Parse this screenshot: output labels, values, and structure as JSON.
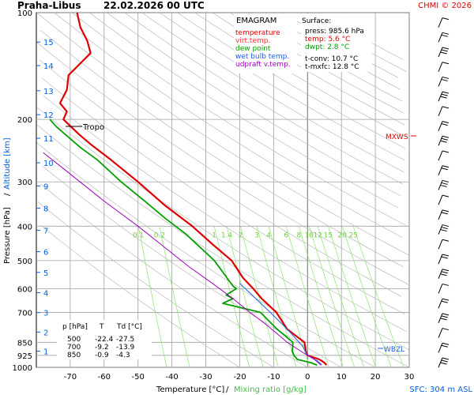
{
  "header": {
    "station": "Praha-Libus",
    "datetime": "22.02.2026 00 UTC",
    "credit": "CHMI © 2026"
  },
  "colors": {
    "temperature": "#e00000",
    "virt_temp": "#ff0000",
    "dew_point": "#00a000",
    "wet_bulb": "#2060e0",
    "updraft": "#a000c0",
    "grid": "#a0a0a0",
    "mixing": "#90e070",
    "adiabat": "#b0b0b0",
    "altitude": "#0060e0",
    "wind": "#000000"
  },
  "legend": {
    "title": "EMAGRAM",
    "items": [
      {
        "label": "temperature",
        "color": "#e00000"
      },
      {
        "label": "virt.temp.",
        "color": "#ff3030"
      },
      {
        "label": "dew point",
        "color": "#00a000"
      },
      {
        "label": "wet bulb temp.",
        "color": "#2060e0"
      },
      {
        "label": "udpraft v.temp.",
        "color": "#a000c0"
      }
    ]
  },
  "surface": {
    "title": "Surface:",
    "press": "press: 985.6 hPa",
    "temp": "temp: 5.6 °C",
    "dwpt": "dwpt: 2.8 °C",
    "tconv": "t-conv: 10.7 °C",
    "tmxfc": "t-mxfc: 12.8 °C"
  },
  "levels_table": {
    "headers": [
      "p [hPa]",
      "T",
      "Td [°C]"
    ],
    "rows": [
      [
        "500",
        "-22.4",
        "-27.5"
      ],
      [
        "700",
        "-9.2",
        "-13.9"
      ],
      [
        "850",
        "-0.9",
        "-4.3"
      ]
    ]
  },
  "annotations": {
    "tropo": "Tropo",
    "mxws": "MXWS",
    "wbzl": "WBZL",
    "sfc": "SFC: 304 m ASL"
  },
  "mixing_labels": [
    "0.1",
    "0.2",
    "1",
    "1.4",
    "2",
    "3",
    "4",
    "6",
    "8",
    "10",
    "12",
    "15",
    "20",
    "25"
  ],
  "chart_data": {
    "type": "line",
    "title": "Praha-Libus 22.02.2026 00 UTC",
    "xlabel": "Temperature [°C]",
    "xlabel2": "Mixing ratio [g/kg]",
    "ylabel": "Pressure [hPa]",
    "ylabel2": "Altitude [km]",
    "xlim": [
      -80,
      30
    ],
    "ylim": [
      1000,
      100
    ],
    "y_scale": "log",
    "x_ticks": [
      -70,
      -60,
      -50,
      -40,
      -30,
      -20,
      -10,
      0,
      10,
      20,
      30
    ],
    "p_ticks": [
      100,
      200,
      300,
      400,
      500,
      600,
      700,
      850,
      925,
      1000
    ],
    "altitude_ticks": [
      {
        "km": 1,
        "p": 900
      },
      {
        "km": 2,
        "p": 795
      },
      {
        "km": 3,
        "p": 701
      },
      {
        "km": 4,
        "p": 616
      },
      {
        "km": 5,
        "p": 540
      },
      {
        "km": 6,
        "p": 472
      },
      {
        "km": 7,
        "p": 411
      },
      {
        "km": 8,
        "p": 356
      },
      {
        "km": 9,
        "p": 308
      },
      {
        "km": 10,
        "p": 265
      },
      {
        "km": 11,
        "p": 226
      },
      {
        "km": 12,
        "p": 194
      },
      {
        "km": 13,
        "p": 166
      },
      {
        "km": 14,
        "p": 141
      },
      {
        "km": 15,
        "p": 121
      }
    ],
    "series": [
      {
        "name": "temperature",
        "points": [
          [
            5.6,
            985
          ],
          [
            5.0,
            970
          ],
          [
            3.5,
            950
          ],
          [
            0.0,
            925
          ],
          [
            -0.5,
            900
          ],
          [
            -0.9,
            850
          ],
          [
            -6.0,
            780
          ],
          [
            -9.2,
            700
          ],
          [
            -13.5,
            640
          ],
          [
            -16.0,
            600
          ],
          [
            -19.0,
            560
          ],
          [
            -22.4,
            500
          ],
          [
            -28.0,
            450
          ],
          [
            -34.0,
            400
          ],
          [
            -42.0,
            350
          ],
          [
            -50.0,
            300
          ],
          [
            -58.0,
            260
          ],
          [
            -64.0,
            235
          ],
          [
            -67.5,
            220
          ],
          [
            -72.0,
            200
          ],
          [
            -71.0,
            190
          ],
          [
            -73.0,
            180
          ],
          [
            -71.0,
            165
          ],
          [
            -70.5,
            150
          ],
          [
            -64.0,
            130
          ],
          [
            -65.0,
            120
          ],
          [
            -67.0,
            110
          ],
          [
            -68.0,
            100
          ]
        ]
      },
      {
        "name": "dew point",
        "points": [
          [
            2.8,
            985
          ],
          [
            1.0,
            970
          ],
          [
            -3.0,
            950
          ],
          [
            -4.0,
            925
          ],
          [
            -4.5,
            900
          ],
          [
            -4.3,
            850
          ],
          [
            -9.0,
            780
          ],
          [
            -13.9,
            700
          ],
          [
            -25.0,
            660
          ],
          [
            -22.0,
            640
          ],
          [
            -24.0,
            625
          ],
          [
            -21.0,
            600
          ],
          [
            -22.0,
            590
          ],
          [
            -27.5,
            500
          ],
          [
            -36.0,
            420
          ],
          [
            -42.0,
            380
          ],
          [
            -48.0,
            340
          ],
          [
            -55.0,
            300
          ],
          [
            -62.0,
            260
          ],
          [
            -67.0,
            240
          ],
          [
            -74.0,
            210
          ],
          [
            -76.0,
            200
          ]
        ]
      },
      {
        "name": "wet bulb temp.",
        "points": [
          [
            4.2,
            985
          ],
          [
            3.0,
            960
          ],
          [
            0.0,
            925
          ],
          [
            -1.5,
            870
          ],
          [
            -6.0,
            780
          ],
          [
            -11.0,
            700
          ],
          [
            -16.0,
            630
          ],
          [
            -20.0,
            580
          ]
        ]
      },
      {
        "name": "udpraft v.temp.",
        "points": [
          [
            4.0,
            985
          ],
          [
            2.0,
            950
          ],
          [
            -2.0,
            900
          ],
          [
            -6.0,
            850
          ],
          [
            -12.0,
            760
          ],
          [
            -17.0,
            700
          ],
          [
            -22.0,
            640
          ],
          [
            -28.0,
            580
          ],
          [
            -35.0,
            520
          ],
          [
            -42.0,
            460
          ],
          [
            -50.0,
            400
          ],
          [
            -60.0,
            340
          ],
          [
            -71.0,
            280
          ],
          [
            -78.0,
            248
          ]
        ]
      }
    ]
  }
}
